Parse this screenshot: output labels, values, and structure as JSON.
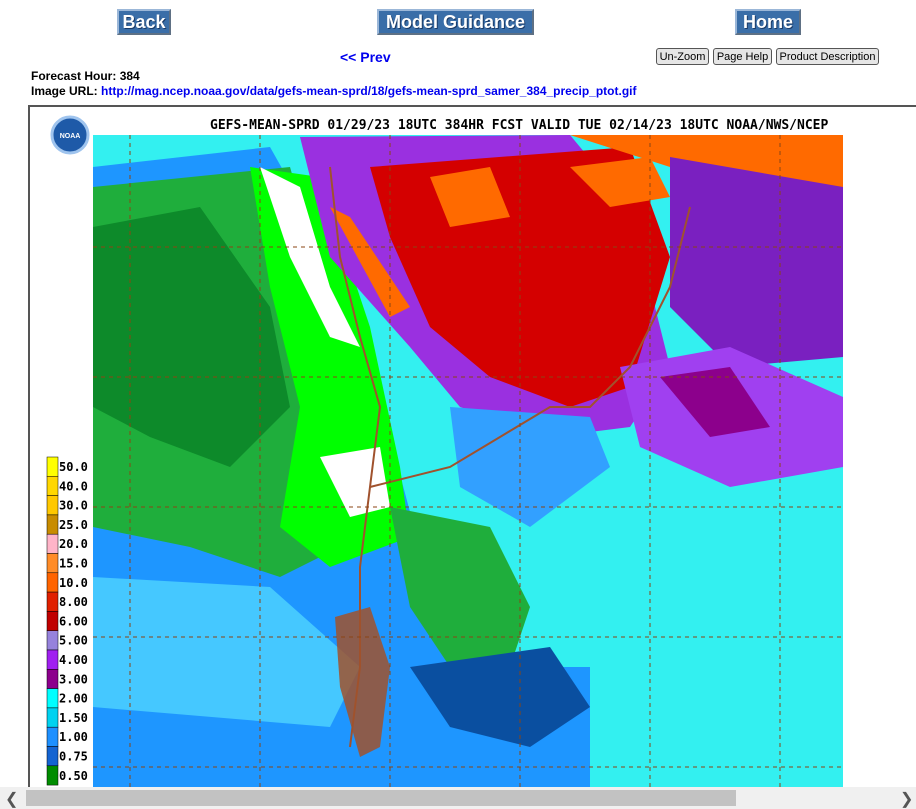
{
  "nav": {
    "back": "Back",
    "model_guidance": "Model Guidance",
    "home": "Home",
    "prev": "<< Prev"
  },
  "toolbar": {
    "un_zoom": "Un-Zoom",
    "page_help": "Page Help",
    "product_description": "Product Description"
  },
  "info": {
    "forecast_hour_label": "Forecast Hour:",
    "forecast_hour": 384,
    "image_url_label": "Image URL:",
    "image_url": "http://mag.ncep.noaa.gov/data/gefs-mean-sprd/18/gefs-mean-sprd_samer_384_precip_ptot.gif"
  },
  "map": {
    "logo": "NOAA",
    "title": "GEFS-MEAN-SPRD 01/29/23 18UTC 384HR FCST VALID TUE 02/14/23 18UTC NOAA/NWS/NCEP",
    "legend": [
      {
        "label": "50.0",
        "color": "#ffff00"
      },
      {
        "label": "40.0",
        "color": "#ffd700"
      },
      {
        "label": "30.0",
        "color": "#ffc800"
      },
      {
        "label": "25.0",
        "color": "#c88c00"
      },
      {
        "label": "20.0",
        "color": "#ffb4c8"
      },
      {
        "label": "15.0",
        "color": "#ff8c28"
      },
      {
        "label": "10.0",
        "color": "#ff6400"
      },
      {
        "label": "8.00",
        "color": "#e02000"
      },
      {
        "label": "6.00",
        "color": "#c00000"
      },
      {
        "label": "5.00",
        "color": "#9682dc"
      },
      {
        "label": "4.00",
        "color": "#a020f0"
      },
      {
        "label": "3.00",
        "color": "#8c008c"
      },
      {
        "label": "2.00",
        "color": "#00ffff"
      },
      {
        "label": "1.50",
        "color": "#00d2f0"
      },
      {
        "label": "1.00",
        "color": "#1e90ff"
      },
      {
        "label": "0.75",
        "color": "#1464d2"
      },
      {
        "label": "0.50",
        "color": "#008c00"
      }
    ]
  }
}
